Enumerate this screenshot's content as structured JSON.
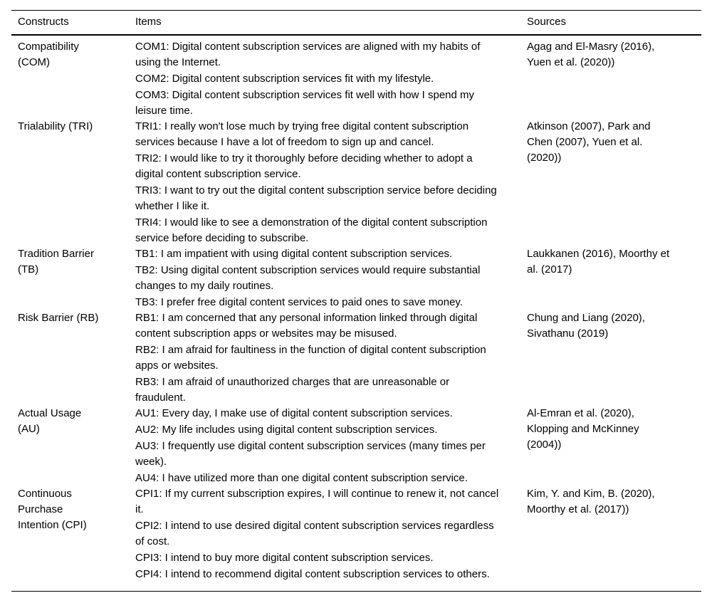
{
  "page": {
    "background_color": "#ffffff",
    "text_color": "#000000",
    "rule_color": "#000000"
  },
  "table": {
    "columns": [
      "Constructs",
      "Items",
      "Sources"
    ],
    "rows": [
      {
        "construct": "Compatibility\n(COM)",
        "items": [
          "COM1: Digital content subscription services are aligned with my habits of using the Internet.",
          "COM2: Digital content subscription services fit with my lifestyle.",
          "COM3: Digital content subscription services fit well with how I spend my leisure time."
        ],
        "sources": "Agag and El-Masry (2016), Yuen et al. (2020))"
      },
      {
        "construct": "Trialability (TRI)",
        "items": [
          "TRI1: I really won't lose much by trying free digital content subscription services because I have a lot of freedom to sign up and cancel.",
          "TRI2: I would like to try it thoroughly before deciding whether to adopt a digital content subscription service.",
          "TRI3: I want to try out the digital content subscription service before deciding whether I like it.",
          "TRI4: I would like to see a demonstration of the digital content subscription service before deciding to subscribe."
        ],
        "sources": "Atkinson (2007), Park and Chen (2007), Yuen et al. (2020))"
      },
      {
        "construct": "Tradition Barrier\n(TB)",
        "items": [
          "TB1: I am impatient with using digital content subscription services.",
          "TB2: Using digital content subscription services would require substantial changes to my daily routines.",
          "TB3: I prefer free digital content services to paid ones to save money."
        ],
        "sources": "Laukkanen (2016), Moorthy et al. (2017)"
      },
      {
        "construct": "Risk Barrier (RB)",
        "items": [
          "RB1: I am concerned that any personal information linked through digital content subscription apps or websites may be misused.",
          "RB2: I am afraid for faultiness in the function of digital content subscription apps or websites.",
          "RB3: I am afraid of unauthorized charges that are unreasonable or fraudulent."
        ],
        "sources": "Chung and Liang (2020), Sivathanu (2019)"
      },
      {
        "construct": "Actual Usage\n(AU)",
        "items": [
          "AU1: Every day, I make use of digital content subscription services.",
          "AU2: My life includes using digital content subscription services.",
          "AU3: I frequently use digital content subscription services (many times per week).",
          "AU4: I have utilized more than one digital content subscription service."
        ],
        "sources": "Al-Emran et al. (2020), Klopping and McKinney (2004))"
      },
      {
        "construct": "Continuous\nPurchase\nIntention (CPI)",
        "items": [
          "CPI1: If my current subscription expires, I will continue to renew it, not cancel it.",
          "CPI2: I intend to use desired digital content subscription services regardless of cost.",
          "CPI3: I intend to buy more digital content subscription services.",
          "CPI4: I intend to recommend digital content subscription services to others."
        ],
        "sources": "Kim, Y. and Kim, B. (2020), Moorthy et al. (2017))"
      }
    ]
  }
}
